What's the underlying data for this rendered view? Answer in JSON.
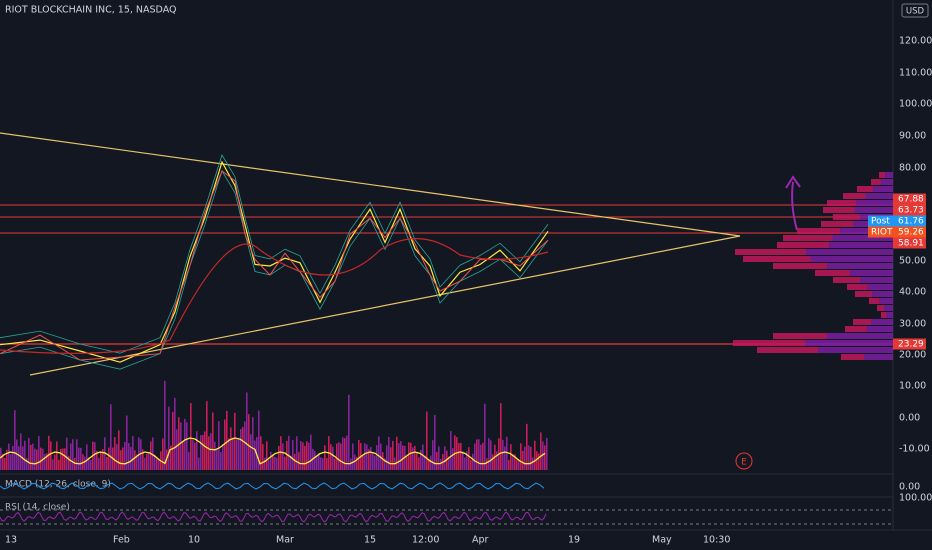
{
  "header": {
    "title": "RIOT BLOCKCHAIN INC, 15, NASDAQ",
    "currency": "USD"
  },
  "price_axis": [
    "120.00",
    "110.00",
    "100.00",
    "90.00",
    "80.00",
    "50.00",
    "40.00",
    "30.00",
    "20.00",
    "10.00",
    "0.00",
    "-10.00"
  ],
  "badges": [
    {
      "text": "67.88"
    },
    {
      "text": "63.73"
    },
    {
      "label": "Post",
      "text": "61.76"
    },
    {
      "label": "RIOT",
      "text": "59.26"
    },
    {
      "text": "58.91"
    },
    {
      "text": "23.29"
    }
  ],
  "macd": {
    "label": "MACD (12, 26, close, 9)",
    "axis": "0.00"
  },
  "rsi": {
    "label": "RSI (14, close)",
    "axis": "100.00"
  },
  "earnings_marker": "E",
  "time_axis": [
    "13",
    "Feb",
    "10",
    "Mar",
    "15",
    "12:00",
    "Apr",
    "19",
    "May",
    "10:30"
  ]
}
